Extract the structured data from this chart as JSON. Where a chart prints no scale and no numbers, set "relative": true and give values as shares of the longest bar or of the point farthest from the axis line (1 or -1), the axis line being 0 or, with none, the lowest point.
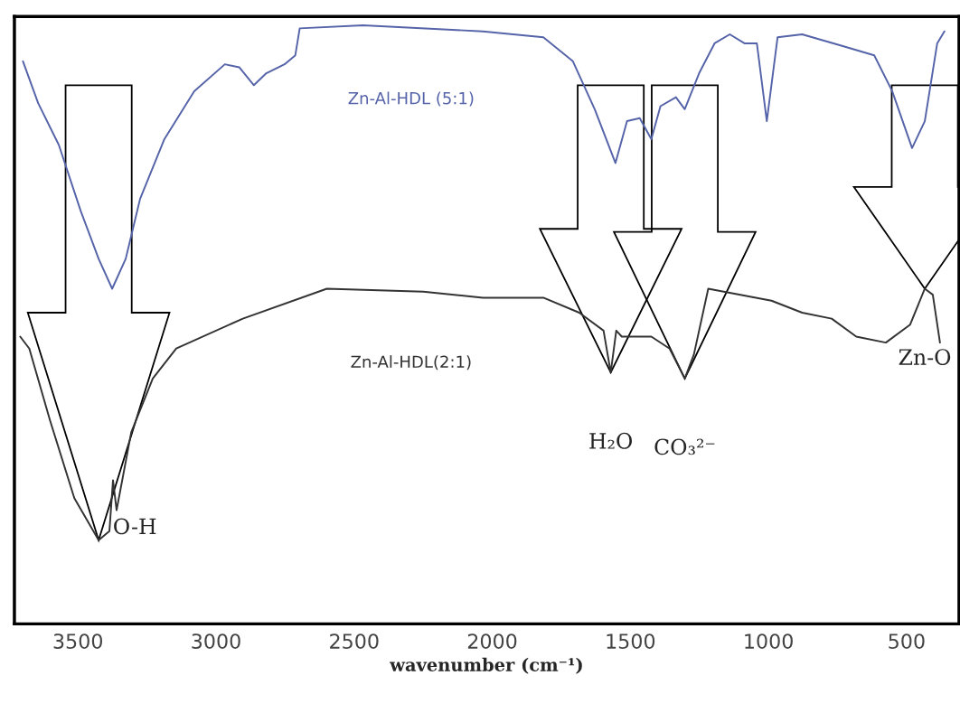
{
  "chart_data": {
    "type": "line",
    "relative": true,
    "xlabel": "wavenumber (cm⁻¹)",
    "xlim": [
      3730,
      310
    ],
    "xticks": [
      3500,
      3000,
      2500,
      2000,
      1500,
      1000,
      500
    ],
    "tick_labels": "x",
    "grid": false,
    "legend": false,
    "marker": "none",
    "line_style": "solid",
    "series": [
      {
        "name": "Zn-Al-HDL (5:1)",
        "color": "#5563a8",
        "x": [
          3699,
          3644,
          3569,
          3490,
          3425,
          3376,
          3327,
          3275,
          3187,
          3079,
          2968,
          2916,
          2863,
          2818,
          2752,
          2713,
          2697,
          2468,
          2034,
          1815,
          1708,
          1629,
          1554,
          1512,
          1466,
          1424,
          1391,
          1335,
          1303,
          1251,
          1195,
          1140,
          1087,
          1042,
          1006,
          967,
          878,
          728,
          617,
          552,
          480,
          434,
          389,
          363
        ],
        "values": [
          0.94,
          0.87,
          0.8,
          0.69,
          0.61,
          0.56,
          0.61,
          0.71,
          0.81,
          0.89,
          0.935,
          0.93,
          0.9,
          0.92,
          0.935,
          0.95,
          0.995,
          1.0,
          0.99,
          0.98,
          0.94,
          0.86,
          0.77,
          0.84,
          0.845,
          0.81,
          0.865,
          0.88,
          0.86,
          0.92,
          0.97,
          0.985,
          0.97,
          0.97,
          0.84,
          0.98,
          0.985,
          0.965,
          0.95,
          0.89,
          0.795,
          0.84,
          0.97,
          0.99
        ]
      },
      {
        "name": "Zn-Al-HDL(2:1)",
        "color": "#333333",
        "x": [
          3709,
          3676,
          3601,
          3513,
          3425,
          3386,
          3373,
          3360,
          3307,
          3229,
          3144,
          2903,
          2599,
          2250,
          2034,
          1815,
          1685,
          1597,
          1571,
          1551,
          1531,
          1424,
          1358,
          1303,
          1270,
          1218,
          1162,
          989,
          878,
          771,
          682,
          575,
          487,
          434,
          405,
          379
        ],
        "values": [
          0.48,
          0.46,
          0.34,
          0.21,
          0.14,
          0.155,
          0.24,
          0.19,
          0.32,
          0.41,
          0.46,
          0.51,
          0.56,
          0.555,
          0.545,
          0.545,
          0.52,
          0.49,
          0.42,
          0.49,
          0.48,
          0.48,
          0.46,
          0.41,
          0.45,
          0.56,
          0.555,
          0.54,
          0.52,
          0.51,
          0.48,
          0.47,
          0.5,
          0.56,
          0.55,
          0.47
        ]
      }
    ],
    "annotations": [
      {
        "text": "O-H",
        "x": 3425,
        "y": 0.14
      },
      {
        "text": "H₂O",
        "x": 1571,
        "y": 0.42
      },
      {
        "text": "CO₃²⁻",
        "x": 1303,
        "y": 0.41
      },
      {
        "text": "Zn-O",
        "x": 434,
        "y": 0.56
      }
    ]
  }
}
